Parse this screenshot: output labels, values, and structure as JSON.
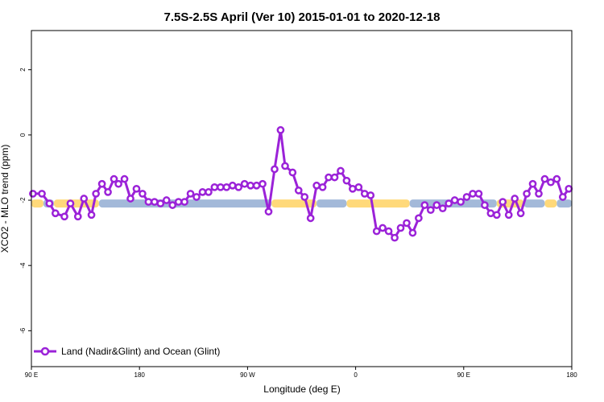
{
  "chart_data": {
    "type": "line",
    "title": "7.5S-2.5S April (Ver 10)   2015-01-01 to 2020-12-18",
    "xlabel": "Longitude (deg E)",
    "ylabel": "XCO2 - MLO trend (ppm)",
    "xlim": [
      90,
      450
    ],
    "ylim": [
      -7.1,
      3.2
    ],
    "x_ticks": [
      {
        "value": 90,
        "label": "90 E"
      },
      {
        "value": 162,
        "label": "180"
      },
      {
        "value": 234,
        "label": "90 W"
      },
      {
        "value": 306,
        "label": "0"
      },
      {
        "value": 378,
        "label": "90 E"
      },
      {
        "value": 450,
        "label": "180"
      }
    ],
    "y_ticks": [
      {
        "value": 2,
        "label": "2"
      },
      {
        "value": 0,
        "label": "0"
      },
      {
        "value": -2,
        "label": "-2"
      },
      {
        "value": -4,
        "label": "-4"
      },
      {
        "value": -6,
        "label": "-6"
      }
    ],
    "legend": {
      "position": "bottom-left",
      "label": "Land (Nadir&Glint) and Ocean (Glint)"
    },
    "series": [
      {
        "name": "Land (Nadir&Glint) and Ocean (Glint)",
        "color": "#9b22d8",
        "x": [
          91,
          97,
          102,
          106,
          112,
          116,
          121,
          125,
          130,
          133,
          137,
          141,
          145,
          148,
          152,
          156,
          160,
          164,
          168,
          172,
          176,
          180,
          184,
          188,
          192,
          196,
          200,
          204,
          208,
          212,
          216,
          220,
          224,
          228,
          232,
          236,
          240,
          244,
          248,
          252,
          256,
          259,
          264,
          268,
          272,
          276,
          280,
          284,
          288,
          292,
          296,
          300,
          304,
          308,
          312,
          316,
          320,
          324,
          328,
          332,
          336,
          340,
          344,
          348,
          352,
          356,
          360,
          364,
          368,
          372,
          376,
          380,
          384,
          388,
          392,
          396,
          400,
          404,
          408,
          412,
          416,
          420,
          424,
          428,
          432,
          436,
          440,
          444,
          448
        ],
        "y": [
          -1.8,
          -1.8,
          -2.1,
          -2.4,
          -2.5,
          -2.1,
          -2.5,
          -1.95,
          -2.45,
          -1.8,
          -1.5,
          -1.75,
          -1.35,
          -1.5,
          -1.35,
          -1.95,
          -1.65,
          -1.8,
          -2.05,
          -2.05,
          -2.1,
          -2.0,
          -2.15,
          -2.05,
          -2.05,
          -1.8,
          -1.9,
          -1.75,
          -1.75,
          -1.6,
          -1.6,
          -1.6,
          -1.55,
          -1.6,
          -1.5,
          -1.55,
          -1.55,
          -1.5,
          -2.35,
          -1.05,
          0.15,
          -0.95,
          -1.15,
          -1.7,
          -1.9,
          -2.55,
          -1.55,
          -1.6,
          -1.3,
          -1.3,
          -1.1,
          -1.4,
          -1.65,
          -1.6,
          -1.8,
          -1.85,
          -2.95,
          -2.85,
          -2.95,
          -3.15,
          -2.85,
          -2.7,
          -3.0,
          -2.55,
          -2.15,
          -2.3,
          -2.15,
          -2.25,
          -2.1,
          -2.0,
          -2.05,
          -1.9,
          -1.8,
          -1.8,
          -2.15,
          -2.4,
          -2.45,
          -2.05,
          -2.45,
          -1.95,
          -2.4,
          -1.8,
          -1.5,
          -1.8,
          -1.35,
          -1.45,
          -1.35,
          -1.9,
          -1.65
        ]
      }
    ],
    "surface_band": {
      "y": -2.1,
      "segments": [
        {
          "type": "land",
          "color": "#ffd97a",
          "x": [
            90,
            98
          ]
        },
        {
          "type": "ocean",
          "color": "#a3b9d9",
          "x": [
            98,
            105
          ]
        },
        {
          "type": "land",
          "color": "#ffd97a",
          "x": [
            105,
            135
          ]
        },
        {
          "type": "ocean",
          "color": "#a3b9d9",
          "x": [
            135,
            250
          ]
        },
        {
          "type": "land",
          "color": "#ffd97a",
          "x": [
            250,
            280
          ]
        },
        {
          "type": "ocean",
          "color": "#a3b9d9",
          "x": [
            280,
            300
          ]
        },
        {
          "type": "land",
          "color": "#ffd97a",
          "x": [
            300,
            342
          ]
        },
        {
          "type": "ocean",
          "color": "#a3b9d9",
          "x": [
            342,
            400
          ]
        },
        {
          "type": "land",
          "color": "#ffd97a",
          "x": [
            400,
            418
          ]
        },
        {
          "type": "ocean",
          "color": "#a3b9d9",
          "x": [
            418,
            432
          ]
        },
        {
          "type": "land",
          "color": "#ffd97a",
          "x": [
            432,
            440
          ]
        },
        {
          "type": "ocean",
          "color": "#a3b9d9",
          "x": [
            440,
            450
          ]
        }
      ]
    }
  }
}
